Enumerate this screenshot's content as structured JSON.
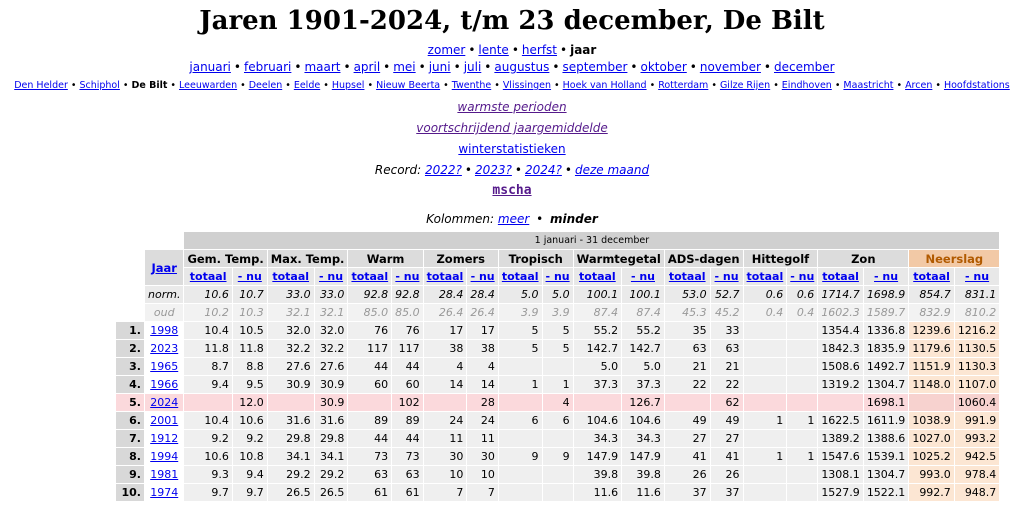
{
  "title": "Jaren 1901-2024, t/m 23 december, De Bilt",
  "seasons": [
    {
      "label": "zomer",
      "link": true
    },
    {
      "label": "lente",
      "link": true
    },
    {
      "label": "herfst",
      "link": true
    },
    {
      "label": "jaar",
      "link": false
    }
  ],
  "months": [
    "januari",
    "februari",
    "maart",
    "april",
    "mei",
    "juni",
    "juli",
    "augustus",
    "september",
    "oktober",
    "november",
    "december"
  ],
  "stations": [
    {
      "label": "Den Helder",
      "link": true
    },
    {
      "label": "Schiphol",
      "link": true
    },
    {
      "label": "De Bilt",
      "link": false
    },
    {
      "label": "Leeuwarden",
      "link": true
    },
    {
      "label": "Deelen",
      "link": true
    },
    {
      "label": "Eelde",
      "link": true
    },
    {
      "label": "Hupsel",
      "link": true
    },
    {
      "label": "Nieuw Beerta",
      "link": true
    },
    {
      "label": "Twenthe",
      "link": true
    },
    {
      "label": "Vlissingen",
      "link": true
    },
    {
      "label": "Hoek van Holland",
      "link": true
    },
    {
      "label": "Rotterdam",
      "link": true
    },
    {
      "label": "Gilze Rijen",
      "link": true
    },
    {
      "label": "Eindhoven",
      "link": true
    },
    {
      "label": "Maastricht",
      "link": true
    },
    {
      "label": "Arcen",
      "link": true
    },
    {
      "label": "Hoofdstations",
      "link": true
    }
  ],
  "links": {
    "warmste": "warmste perioden",
    "voortschrijdend": "voortschrijdend jaargemiddelde",
    "winter": "winterstatistieken",
    "mscha": "mscha"
  },
  "record": {
    "label": "Record:",
    "items": [
      "2022?",
      "2023?",
      "2024?",
      "deze maand"
    ]
  },
  "kolommen": {
    "label": "Kolommen:",
    "meer": "meer",
    "minder": "minder"
  },
  "table": {
    "period": "1 januari - 31 december",
    "jaar_header": "Jaar",
    "groups": [
      "Gem. Temp.",
      "Max. Temp.",
      "Warm",
      "Zomers",
      "Tropisch",
      "Warmtegetal",
      "ADS-dagen",
      "Hittegolf",
      "Zon",
      "Neerslag"
    ],
    "sub_totaal": "totaal",
    "sub_nu": "- nu",
    "norm_label": "norm.",
    "oud_label": "oud",
    "norm": [
      "10.6",
      "10.7",
      "33.0",
      "33.0",
      "92.8",
      "92.8",
      "28.4",
      "28.4",
      "5.0",
      "5.0",
      "100.1",
      "100.1",
      "53.0",
      "52.7",
      "0.6",
      "0.6",
      "1714.7",
      "1698.9",
      "854.7",
      "831.1"
    ],
    "oud": [
      "10.2",
      "10.3",
      "32.1",
      "32.1",
      "85.0",
      "85.0",
      "26.4",
      "26.4",
      "3.9",
      "3.9",
      "87.4",
      "87.4",
      "45.3",
      "45.2",
      "0.4",
      "0.4",
      "1602.3",
      "1589.7",
      "832.9",
      "810.2"
    ],
    "rows": [
      {
        "rank": "1.",
        "year": "1998",
        "v": [
          "10.4",
          "10.5",
          "32.0",
          "32.0",
          "76",
          "76",
          "17",
          "17",
          "5",
          "5",
          "55.2",
          "55.2",
          "35",
          "33",
          "",
          "",
          "1354.4",
          "1336.8",
          "1239.6",
          "1216.2"
        ]
      },
      {
        "rank": "2.",
        "year": "2023",
        "v": [
          "11.8",
          "11.8",
          "32.2",
          "32.2",
          "117",
          "117",
          "38",
          "38",
          "5",
          "5",
          "142.7",
          "142.7",
          "63",
          "63",
          "",
          "",
          "1842.3",
          "1835.9",
          "1179.6",
          "1130.5"
        ]
      },
      {
        "rank": "3.",
        "year": "1965",
        "v": [
          "8.7",
          "8.8",
          "27.6",
          "27.6",
          "44",
          "44",
          "4",
          "4",
          "",
          "",
          "5.0",
          "5.0",
          "21",
          "21",
          "",
          "",
          "1508.6",
          "1492.7",
          "1151.9",
          "1130.3"
        ]
      },
      {
        "rank": "4.",
        "year": "1966",
        "v": [
          "9.4",
          "9.5",
          "30.9",
          "30.9",
          "60",
          "60",
          "14",
          "14",
          "1",
          "1",
          "37.3",
          "37.3",
          "22",
          "22",
          "",
          "",
          "1319.2",
          "1304.7",
          "1148.0",
          "1107.0"
        ]
      },
      {
        "rank": "5.",
        "year": "2024",
        "hl": true,
        "v": [
          "",
          "12.0",
          "",
          "30.9",
          "",
          "102",
          "",
          "28",
          "",
          "4",
          "",
          "126.7",
          "",
          "62",
          "",
          "",
          "",
          "1698.1",
          "",
          "1060.4"
        ]
      },
      {
        "rank": "6.",
        "year": "2001",
        "v": [
          "10.4",
          "10.6",
          "31.6",
          "31.6",
          "89",
          "89",
          "24",
          "24",
          "6",
          "6",
          "104.6",
          "104.6",
          "49",
          "49",
          "1",
          "1",
          "1622.5",
          "1611.9",
          "1038.9",
          "991.9"
        ]
      },
      {
        "rank": "7.",
        "year": "1912",
        "v": [
          "9.2",
          "9.2",
          "29.8",
          "29.8",
          "44",
          "44",
          "11",
          "11",
          "",
          "",
          "34.3",
          "34.3",
          "27",
          "27",
          "",
          "",
          "1389.2",
          "1388.6",
          "1027.0",
          "993.2"
        ]
      },
      {
        "rank": "8.",
        "year": "1994",
        "v": [
          "10.6",
          "10.8",
          "34.1",
          "34.1",
          "73",
          "73",
          "30",
          "30",
          "9",
          "9",
          "147.9",
          "147.9",
          "41",
          "41",
          "1",
          "1",
          "1547.6",
          "1539.1",
          "1025.2",
          "942.5"
        ]
      },
      {
        "rank": "9.",
        "year": "1981",
        "v": [
          "9.3",
          "9.4",
          "29.2",
          "29.2",
          "63",
          "63",
          "10",
          "10",
          "",
          "",
          "39.8",
          "39.8",
          "26",
          "26",
          "",
          "",
          "1308.1",
          "1304.7",
          "993.0",
          "978.4"
        ]
      },
      {
        "rank": "10.",
        "year": "1974",
        "v": [
          "9.7",
          "9.7",
          "26.5",
          "26.5",
          "61",
          "61",
          "7",
          "7",
          "",
          "",
          "11.6",
          "11.6",
          "37",
          "37",
          "",
          "",
          "1527.9",
          "1522.1",
          "992.7",
          "948.7"
        ]
      }
    ]
  }
}
